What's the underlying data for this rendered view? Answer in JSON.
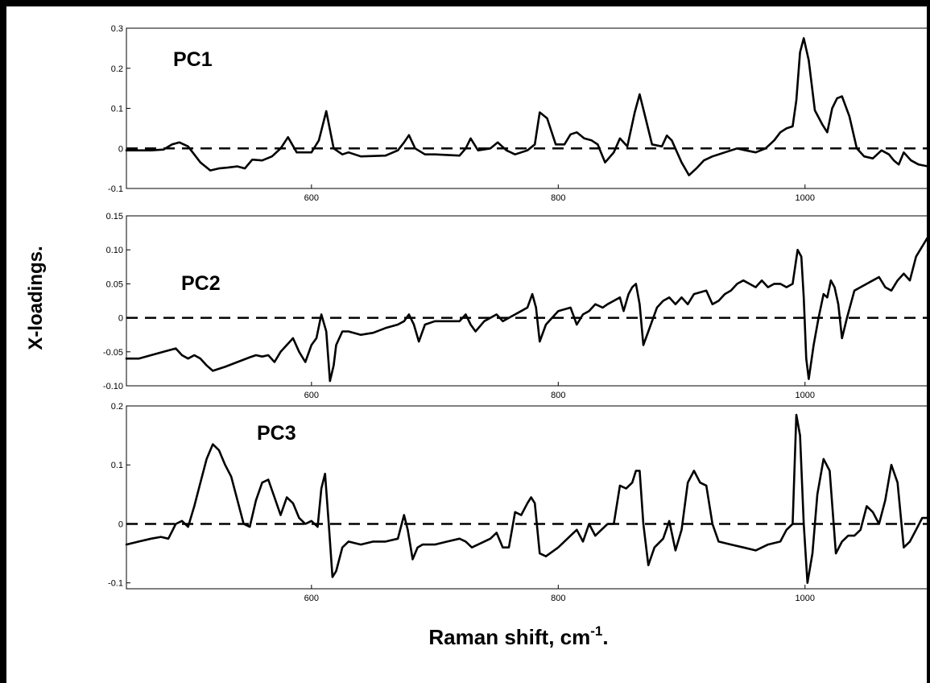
{
  "figure": {
    "ylabel": "X-loadings.",
    "xlabel": "Raman shift, cm",
    "xlabel_sup": "-1",
    "xlabel_suffix": "."
  },
  "chart_data": [
    {
      "type": "line",
      "title": "PC1",
      "xlim": [
        450,
        1100
      ],
      "ylim": [
        -0.1,
        0.3
      ],
      "xticks": [
        {
          "value": 600,
          "label": "600"
        },
        {
          "value": 800,
          "label": "800"
        },
        {
          "value": 1000,
          "label": "1000"
        }
      ],
      "yticks": [
        {
          "value": 0.3,
          "label": "0.3"
        },
        {
          "value": 0.2,
          "label": "0.2"
        },
        {
          "value": 0.1,
          "label": "0.1"
        },
        {
          "value": 0,
          "label": "0"
        },
        {
          "value": -0.1,
          "label": "-0.1"
        }
      ],
      "baseline": 0,
      "series": [
        {
          "x": [
            450,
            470,
            480,
            487,
            493,
            500,
            510,
            518,
            525,
            532,
            540,
            546,
            552,
            560,
            568,
            575,
            581,
            588,
            600,
            606,
            612,
            618,
            625,
            630,
            640,
            660,
            670,
            675,
            679,
            684,
            692,
            700,
            720,
            725,
            729,
            735,
            745,
            751,
            758,
            765,
            775,
            781,
            785,
            791,
            798,
            805,
            810,
            815,
            821,
            827,
            832,
            838,
            845,
            850,
            856,
            862,
            866,
            870,
            876,
            884,
            888,
            892,
            900,
            906,
            912,
            918,
            925,
            935,
            945,
            952,
            960,
            968,
            975,
            980,
            985,
            990,
            993,
            996,
            999,
            1003,
            1008,
            1014,
            1018,
            1022,
            1026,
            1030,
            1036,
            1042,
            1048,
            1055,
            1062,
            1068,
            1072,
            1076,
            1080,
            1086,
            1092,
            1100
          ],
          "y": [
            -0.005,
            -0.005,
            -0.003,
            0.01,
            0.015,
            0.005,
            -0.035,
            -0.055,
            -0.05,
            -0.048,
            -0.045,
            -0.05,
            -0.028,
            -0.03,
            -0.02,
            0.0,
            0.028,
            -0.01,
            -0.01,
            0.02,
            0.093,
            0.0,
            -0.015,
            -0.01,
            -0.02,
            -0.018,
            -0.005,
            0.015,
            0.033,
            0.0,
            -0.015,
            -0.015,
            -0.018,
            0.0,
            0.025,
            -0.005,
            0.0,
            0.015,
            -0.005,
            -0.015,
            -0.005,
            0.01,
            0.09,
            0.075,
            0.01,
            0.01,
            0.035,
            0.04,
            0.025,
            0.02,
            0.01,
            -0.035,
            -0.01,
            0.025,
            0.005,
            0.09,
            0.135,
            0.085,
            0.01,
            0.005,
            0.032,
            0.02,
            -0.035,
            -0.067,
            -0.05,
            -0.03,
            -0.02,
            -0.01,
            0.0,
            -0.005,
            -0.01,
            0.0,
            0.02,
            0.04,
            0.05,
            0.055,
            0.12,
            0.24,
            0.275,
            0.22,
            0.095,
            0.06,
            0.04,
            0.1,
            0.125,
            0.13,
            0.08,
            0.0,
            -0.02,
            -0.025,
            -0.005,
            -0.015,
            -0.03,
            -0.04,
            -0.01,
            -0.03,
            -0.04,
            -0.045
          ]
        }
      ]
    },
    {
      "type": "line",
      "title": "PC2",
      "xlim": [
        450,
        1100
      ],
      "ylim": [
        -0.1,
        0.15
      ],
      "xticks": [
        {
          "value": 600,
          "label": "600"
        },
        {
          "value": 800,
          "label": "800"
        },
        {
          "value": 1000,
          "label": "1000"
        }
      ],
      "yticks": [
        {
          "value": 0.15,
          "label": "0.15"
        },
        {
          "value": 0.1,
          "label": "0.10"
        },
        {
          "value": 0.05,
          "label": "0.05"
        },
        {
          "value": 0,
          "label": "0"
        },
        {
          "value": -0.05,
          "label": "-0.05"
        },
        {
          "value": -0.1,
          "label": "-0.10"
        }
      ],
      "baseline": 0,
      "series": [
        {
          "x": [
            450,
            460,
            470,
            480,
            490,
            495,
            500,
            505,
            510,
            515,
            520,
            530,
            540,
            550,
            555,
            560,
            565,
            570,
            575,
            580,
            585,
            590,
            595,
            600,
            604,
            608,
            612,
            615,
            618,
            620,
            625,
            630,
            640,
            650,
            660,
            670,
            675,
            679,
            683,
            687,
            692,
            700,
            710,
            720,
            725,
            729,
            733,
            740,
            750,
            755,
            760,
            765,
            770,
            775,
            779,
            782,
            785,
            790,
            795,
            800,
            810,
            815,
            820,
            825,
            830,
            836,
            840,
            845,
            850,
            853,
            857,
            860,
            863,
            866,
            869,
            873,
            880,
            885,
            890,
            895,
            900,
            905,
            910,
            920,
            925,
            930,
            935,
            940,
            945,
            950,
            955,
            960,
            965,
            970,
            975,
            980,
            985,
            990,
            994,
            997,
            999,
            1001,
            1003,
            1007,
            1011,
            1015,
            1018,
            1021,
            1024,
            1027,
            1030,
            1034,
            1040,
            1045,
            1050,
            1055,
            1060,
            1065,
            1070,
            1075,
            1080,
            1085,
            1090,
            1095,
            1100
          ],
          "y": [
            -0.06,
            -0.06,
            -0.055,
            -0.05,
            -0.045,
            -0.055,
            -0.06,
            -0.055,
            -0.06,
            -0.07,
            -0.078,
            -0.072,
            -0.065,
            -0.058,
            -0.055,
            -0.057,
            -0.055,
            -0.065,
            -0.05,
            -0.04,
            -0.03,
            -0.05,
            -0.065,
            -0.04,
            -0.03,
            0.005,
            -0.02,
            -0.093,
            -0.07,
            -0.04,
            -0.02,
            -0.02,
            -0.025,
            -0.022,
            -0.015,
            -0.01,
            -0.005,
            0.005,
            -0.01,
            -0.035,
            -0.01,
            -0.005,
            -0.005,
            -0.005,
            0.005,
            -0.01,
            -0.02,
            -0.005,
            0.005,
            -0.005,
            0.0,
            0.005,
            0.01,
            0.015,
            0.035,
            0.015,
            -0.035,
            -0.01,
            0.0,
            0.01,
            0.015,
            -0.01,
            0.005,
            0.01,
            0.02,
            0.015,
            0.02,
            0.025,
            0.03,
            0.01,
            0.035,
            0.045,
            0.05,
            0.02,
            -0.04,
            -0.02,
            0.015,
            0.025,
            0.03,
            0.02,
            0.03,
            0.02,
            0.035,
            0.04,
            0.02,
            0.025,
            0.035,
            0.04,
            0.05,
            0.055,
            0.05,
            0.045,
            0.055,
            0.045,
            0.05,
            0.05,
            0.045,
            0.05,
            0.1,
            0.09,
            0.03,
            -0.06,
            -0.09,
            -0.04,
            0.0,
            0.035,
            0.03,
            0.055,
            0.045,
            0.02,
            -0.03,
            0.0,
            0.04,
            0.045,
            0.05,
            0.055,
            0.06,
            0.045,
            0.04,
            0.055,
            0.065,
            0.055,
            0.09,
            0.105,
            0.12
          ]
        }
      ]
    },
    {
      "type": "line",
      "title": "PC3",
      "xlim": [
        450,
        1100
      ],
      "ylim": [
        -0.11,
        0.2
      ],
      "xticks": [
        {
          "value": 600,
          "label": "600"
        },
        {
          "value": 800,
          "label": "800"
        },
        {
          "value": 1000,
          "label": "1000"
        }
      ],
      "yticks": [
        {
          "value": 0.2,
          "label": "0.2"
        },
        {
          "value": 0.1,
          "label": "0.1"
        },
        {
          "value": 0,
          "label": "0"
        },
        {
          "value": -0.1,
          "label": "-0.1"
        }
      ],
      "baseline": 0,
      "series": [
        {
          "x": [
            450,
            460,
            470,
            478,
            484,
            490,
            495,
            500,
            505,
            510,
            515,
            520,
            525,
            530,
            535,
            540,
            545,
            550,
            555,
            560,
            565,
            570,
            575,
            580,
            585,
            590,
            595,
            600,
            605,
            608,
            611,
            614,
            617,
            620,
            625,
            630,
            640,
            650,
            660,
            670,
            675,
            678,
            682,
            686,
            690,
            700,
            710,
            720,
            725,
            730,
            735,
            745,
            750,
            755,
            760,
            765,
            770,
            775,
            778,
            781,
            785,
            790,
            800,
            810,
            815,
            820,
            825,
            830,
            835,
            840,
            845,
            850,
            855,
            860,
            863,
            866,
            869,
            873,
            878,
            885,
            890,
            895,
            900,
            905,
            910,
            915,
            920,
            925,
            930,
            940,
            950,
            960,
            970,
            980,
            985,
            990,
            993,
            996,
            999,
            1002,
            1006,
            1010,
            1015,
            1020,
            1025,
            1030,
            1035,
            1040,
            1045,
            1050,
            1055,
            1060,
            1065,
            1070,
            1075,
            1080,
            1085,
            1090,
            1095,
            1100
          ],
          "y": [
            -0.035,
            -0.03,
            -0.025,
            -0.022,
            -0.025,
            0.0,
            0.005,
            -0.005,
            0.03,
            0.07,
            0.11,
            0.135,
            0.125,
            0.1,
            0.08,
            0.04,
            0.0,
            -0.005,
            0.04,
            0.07,
            0.075,
            0.045,
            0.015,
            0.045,
            0.035,
            0.01,
            0.0,
            0.005,
            -0.005,
            0.06,
            0.085,
            0.0,
            -0.09,
            -0.08,
            -0.04,
            -0.03,
            -0.035,
            -0.03,
            -0.03,
            -0.025,
            0.015,
            -0.01,
            -0.06,
            -0.04,
            -0.035,
            -0.035,
            -0.03,
            -0.025,
            -0.03,
            -0.04,
            -0.035,
            -0.025,
            -0.015,
            -0.04,
            -0.04,
            0.02,
            0.015,
            0.035,
            0.045,
            0.035,
            -0.05,
            -0.055,
            -0.04,
            -0.02,
            -0.01,
            -0.03,
            0.0,
            -0.02,
            -0.01,
            0.0,
            0.0,
            0.065,
            0.06,
            0.07,
            0.09,
            0.09,
            0.0,
            -0.07,
            -0.04,
            -0.025,
            0.005,
            -0.045,
            -0.01,
            0.07,
            0.09,
            0.07,
            0.065,
            0.0,
            -0.03,
            -0.035,
            -0.04,
            -0.045,
            -0.035,
            -0.03,
            -0.01,
            0.0,
            0.185,
            0.15,
            0.0,
            -0.1,
            -0.05,
            0.05,
            0.11,
            0.09,
            -0.05,
            -0.03,
            -0.02,
            -0.02,
            -0.01,
            0.03,
            0.02,
            0.0,
            0.04,
            0.1,
            0.07,
            -0.04,
            -0.03,
            -0.01,
            0.01,
            0.01
          ]
        }
      ]
    }
  ]
}
